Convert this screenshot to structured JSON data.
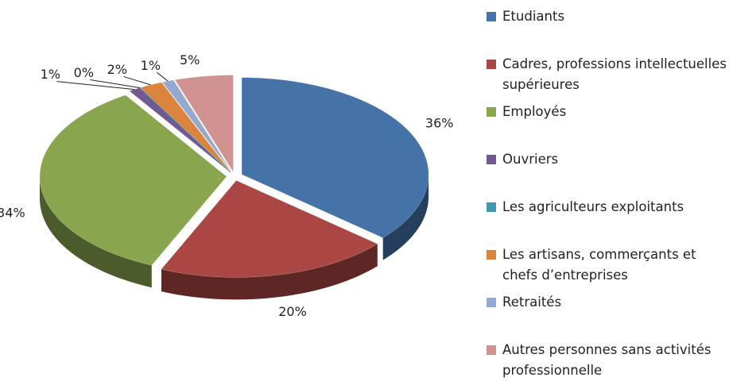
{
  "chart_data": {
    "type": "pie",
    "categories": [
      "Etudiants",
      "Cadres, professions intellectuelles supérieures",
      "Employés",
      "Ouvriers",
      "Les agriculteurs exploitants",
      "Les artisans, commerçants et chefs d’entreprises",
      "Retraités",
      "Autres personnes  sans activités professionnelle"
    ],
    "values": [
      36,
      20,
      34,
      1,
      0,
      2,
      1,
      5
    ],
    "value_labels": [
      "36%",
      "20%",
      "34%",
      "1%",
      "0%",
      "2%",
      "1%",
      "5%"
    ],
    "colors": [
      "#4572a7",
      "#aa4643",
      "#89a54e",
      "#71588f",
      "#4198af",
      "#db843d",
      "#93a9cf",
      "#d19392"
    ],
    "legend": "right"
  }
}
